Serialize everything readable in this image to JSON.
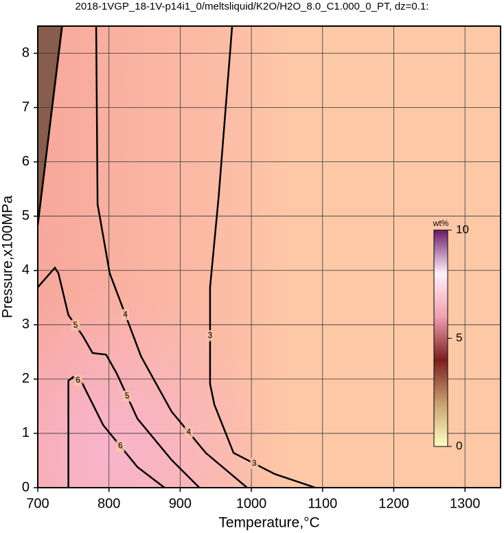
{
  "chart_data": {
    "type": "contour",
    "title": "2018-1VGP_18-1V-p14i1_0/meltsliquid/K2O/H2O_8.0_C1.000_0_PT, dz=0.1:",
    "x_label": "Temperature,°C",
    "y_label": "Pressure,x100MPa",
    "xlim": [
      700,
      1350
    ],
    "ylim": [
      0,
      8.5
    ],
    "xticks": [
      700,
      800,
      900,
      1000,
      1100,
      1200,
      1300
    ],
    "yticks": [
      0,
      1,
      2,
      3,
      4,
      5,
      6,
      7,
      8
    ],
    "grid": true,
    "line_color": "#000000",
    "contours": [
      {
        "level": 3,
        "x": [
          973,
          954,
          942,
          942,
          948,
          975,
          1033,
          1090
        ],
        "y": [
          8.5,
          5.35,
          3.69,
          1.91,
          1.53,
          0.64,
          0.25,
          0
        ]
      },
      {
        "level": 4,
        "x": [
          782,
          784,
          801,
          845,
          888,
          936,
          994
        ],
        "y": [
          8.5,
          5.22,
          3.95,
          2.42,
          1.4,
          0.64,
          0
        ]
      },
      {
        "level": 4,
        "x": [
          734,
          700
        ],
        "y": [
          8.5,
          4.84
        ]
      },
      {
        "level": 5,
        "x": [
          700,
          724,
          729,
          743,
          763,
          777,
          796,
          811,
          840,
          888,
          927
        ],
        "y": [
          3.69,
          4.05,
          3.95,
          3.18,
          2.8,
          2.48,
          2.45,
          2.1,
          1.27,
          0.51,
          0
        ]
      },
      {
        "level": 6,
        "x": [
          743,
          743,
          750,
          763,
          792,
          840,
          878
        ],
        "y": [
          0,
          1.97,
          2.04,
          1.91,
          1.15,
          0.38,
          0
        ]
      }
    ],
    "colorbar": {
      "label": "wt%",
      "lim": [
        0,
        10
      ],
      "ticks": [
        0,
        5,
        10
      ],
      "colors": [
        "#ffffc0",
        "#c8a070",
        "#7a1e1e",
        "#f0a0b0",
        "#fff0f8",
        "#6a1a6a"
      ]
    }
  }
}
